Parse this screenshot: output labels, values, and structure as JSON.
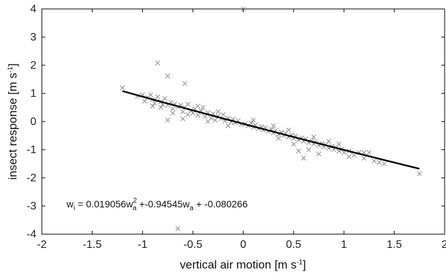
{
  "chart_data": {
    "type": "scatter",
    "xlabel": "vertical air motion [m s",
    "xlabel_sup": "-1",
    "xlabel_end": "]",
    "ylabel": "insect response [m s",
    "ylabel_sup": "-1",
    "ylabel_end": "]",
    "xlim": [
      -2,
      2
    ],
    "ylim": [
      -4,
      4
    ],
    "xticks": [
      -2,
      -1.5,
      -1,
      -0.5,
      0,
      0.5,
      1,
      1.5,
      2
    ],
    "yticks": [
      -4,
      -3,
      -2,
      -1,
      0,
      1,
      2,
      3,
      4
    ],
    "grid": false,
    "marker_color": "#8c8c8c",
    "line_color": "#000000",
    "fit": {
      "a": 0.019056,
      "b": -0.94545,
      "c": -0.080266,
      "x_range": [
        -1.2,
        1.75
      ]
    },
    "equation": {
      "lhs": "w",
      "lhs_sub": "i",
      "eq": " = 0.019056w",
      "t1_sub": "a",
      "t1_sup": "2",
      "mid": " +-0.94545w",
      "t2_sub": "a",
      "end": " + -0.080266"
    },
    "points": [
      [
        -1.2,
        1.2
      ],
      [
        -0.85,
        2.08
      ],
      [
        -0.75,
        1.62
      ],
      [
        -0.58,
        1.35
      ],
      [
        -0.65,
        -3.8
      ],
      [
        -0.75,
        0.05
      ],
      [
        -1.0,
        0.95
      ],
      [
        -0.95,
        0.85
      ],
      [
        -0.98,
        0.72
      ],
      [
        -0.9,
        0.78
      ],
      [
        -0.88,
        0.65
      ],
      [
        -0.85,
        0.88
      ],
      [
        -0.82,
        0.7
      ],
      [
        -0.8,
        0.6
      ],
      [
        -0.78,
        0.82
      ],
      [
        -0.75,
        0.58
      ],
      [
        -0.72,
        0.68
      ],
      [
        -0.7,
        0.45
      ],
      [
        -0.68,
        0.62
      ],
      [
        -0.65,
        0.52
      ],
      [
        -0.62,
        0.58
      ],
      [
        -0.6,
        0.35
      ],
      [
        -0.58,
        0.5
      ],
      [
        -0.55,
        0.62
      ],
      [
        -0.52,
        0.4
      ],
      [
        -0.5,
        0.3
      ],
      [
        -0.48,
        0.45
      ],
      [
        -0.45,
        0.22
      ],
      [
        -0.42,
        0.38
      ],
      [
        -0.4,
        0.5
      ],
      [
        -0.38,
        0.18
      ],
      [
        -0.35,
        0.32
      ],
      [
        -0.32,
        0.12
      ],
      [
        -0.3,
        0.28
      ],
      [
        -0.28,
        0.05
      ],
      [
        -0.25,
        0.2
      ],
      [
        -0.22,
        0.1
      ],
      [
        -0.2,
        0.25
      ],
      [
        -0.18,
        0.02
      ],
      [
        -0.15,
        0.12
      ],
      [
        -0.12,
        -0.02
      ],
      [
        -0.1,
        0.08
      ],
      [
        -0.08,
        -0.05
      ],
      [
        -0.05,
        0.03
      ],
      [
        -0.02,
        -0.1
      ],
      [
        0.0,
        4.0
      ],
      [
        0.02,
        -0.08
      ],
      [
        0.05,
        -0.15
      ],
      [
        0.08,
        -0.05
      ],
      [
        0.1,
        -0.2
      ],
      [
        0.12,
        -0.12
      ],
      [
        0.15,
        -0.25
      ],
      [
        0.18,
        -0.18
      ],
      [
        0.2,
        -0.3
      ],
      [
        0.22,
        -0.22
      ],
      [
        0.25,
        -0.35
      ],
      [
        0.28,
        -0.28
      ],
      [
        0.3,
        -0.4
      ],
      [
        0.32,
        -0.32
      ],
      [
        0.35,
        -0.45
      ],
      [
        0.38,
        -0.38
      ],
      [
        0.4,
        -0.5
      ],
      [
        0.42,
        -0.42
      ],
      [
        0.45,
        -0.55
      ],
      [
        0.48,
        -0.48
      ],
      [
        0.5,
        -0.6
      ],
      [
        0.52,
        -0.52
      ],
      [
        0.55,
        -0.65
      ],
      [
        0.58,
        -0.58
      ],
      [
        0.6,
        -0.7
      ],
      [
        0.62,
        -0.62
      ],
      [
        0.65,
        -0.75
      ],
      [
        0.68,
        -0.68
      ],
      [
        0.7,
        -0.8
      ],
      [
        0.72,
        -0.72
      ],
      [
        0.75,
        -0.85
      ],
      [
        0.78,
        -0.78
      ],
      [
        0.8,
        -0.9
      ],
      [
        0.82,
        -0.82
      ],
      [
        0.85,
        -0.95
      ],
      [
        0.88,
        -0.88
      ],
      [
        0.9,
        -1.0
      ],
      [
        0.92,
        -0.92
      ],
      [
        0.95,
        -1.05
      ],
      [
        0.98,
        -0.98
      ],
      [
        1.0,
        -1.1
      ],
      [
        1.05,
        -1.05
      ],
      [
        1.1,
        -1.2
      ],
      [
        1.15,
        -1.1
      ],
      [
        1.2,
        -1.3
      ],
      [
        1.25,
        -1.1
      ],
      [
        1.3,
        -1.4
      ],
      [
        1.35,
        -1.45
      ],
      [
        1.4,
        -1.5
      ],
      [
        1.75,
        -1.85
      ],
      [
        0.55,
        -1.05
      ],
      [
        0.6,
        -1.3
      ],
      [
        0.75,
        -1.15
      ],
      [
        0.65,
        -1.0
      ],
      [
        -0.9,
        0.55
      ],
      [
        -0.6,
        0.1
      ],
      [
        -0.45,
        0.55
      ],
      [
        -0.35,
        0.0
      ],
      [
        -0.25,
        0.35
      ],
      [
        0.1,
        0.05
      ],
      [
        0.3,
        -0.15
      ],
      [
        0.45,
        -0.3
      ],
      [
        0.7,
        -0.55
      ],
      [
        0.85,
        -0.7
      ],
      [
        -0.7,
        0.3
      ],
      [
        -0.55,
        0.25
      ],
      [
        -0.15,
        -0.15
      ],
      [
        0.35,
        -0.6
      ],
      [
        0.5,
        -0.8
      ],
      [
        0.95,
        -0.8
      ],
      [
        1.05,
        -1.25
      ],
      [
        1.2,
        -1.1
      ],
      [
        -1.05,
        0.9
      ],
      [
        -0.92,
        0.95
      ],
      [
        -0.82,
        0.5
      ]
    ]
  }
}
